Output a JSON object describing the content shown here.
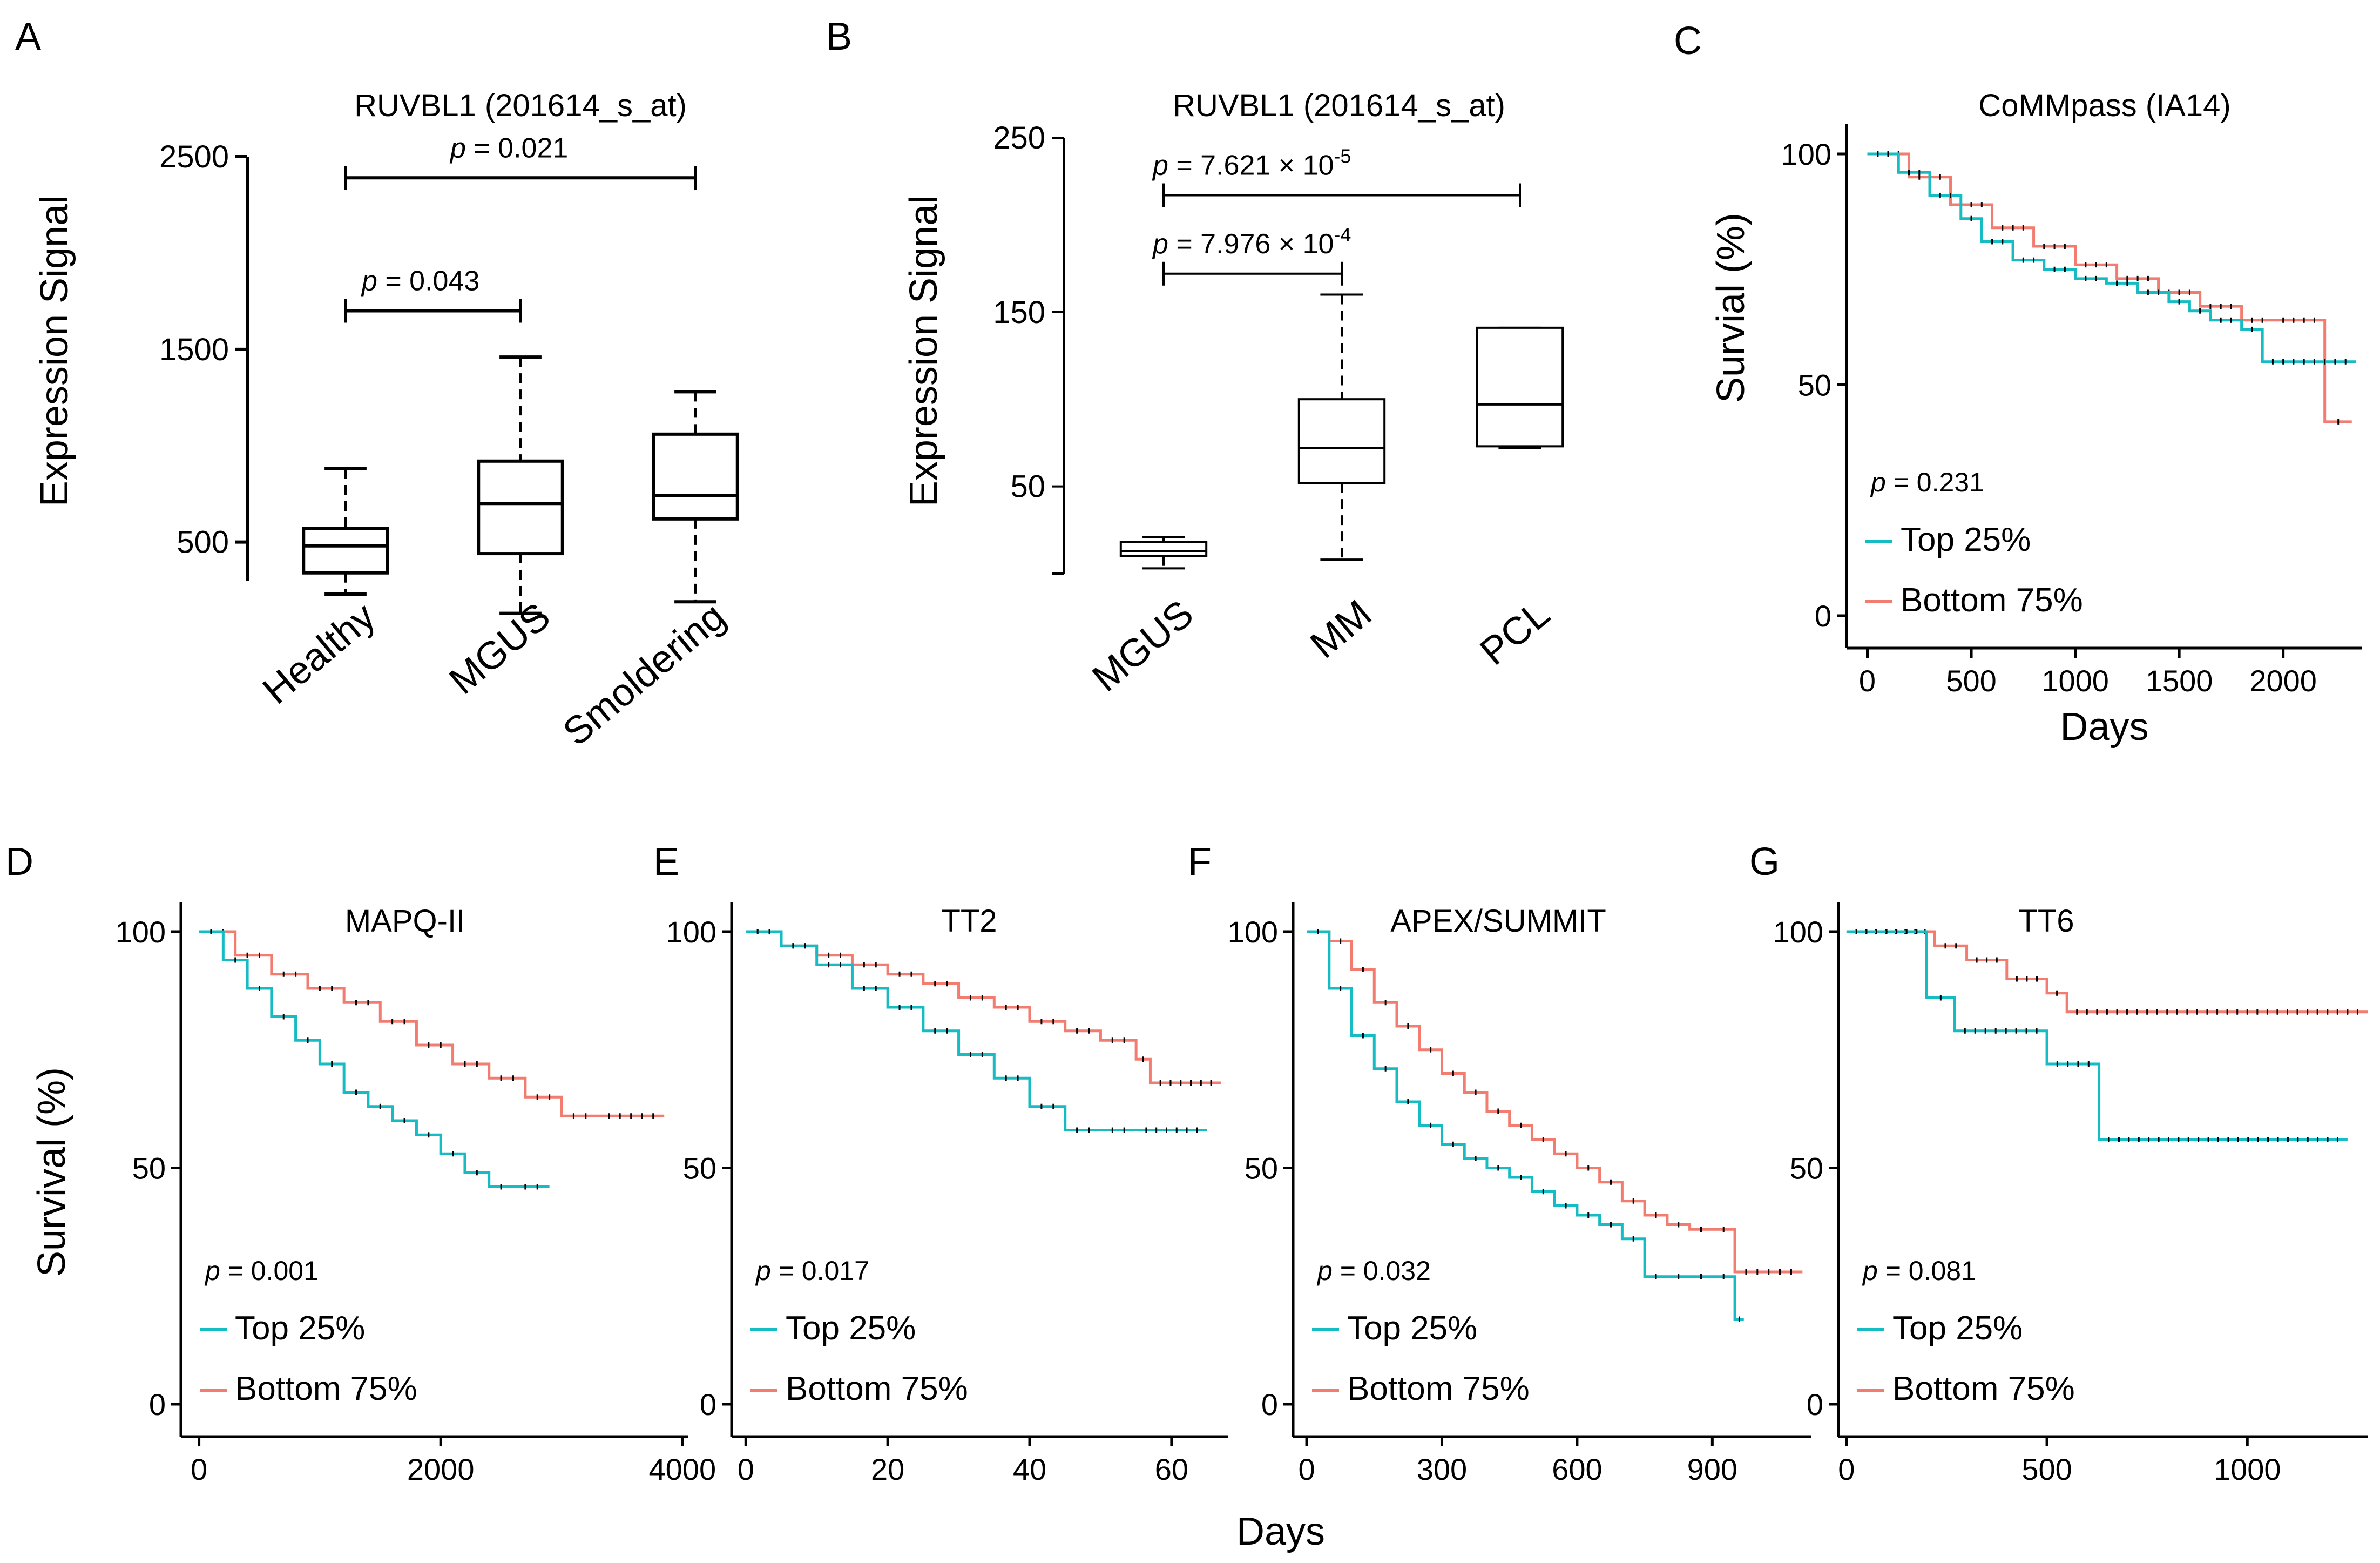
{
  "figure": {
    "shared_xlabel": "Days",
    "colors": {
      "top": "#16bcc4",
      "bottom": "#f27c6f",
      "censor": "#000000",
      "box": "#000000"
    }
  },
  "chart_data": [
    {
      "panel": "A",
      "type": "box",
      "title": "RUVBL1 (201614_s_at)",
      "ylabel": "Expression Signal",
      "ylim": [
        300,
        2500
      ],
      "yticks": [
        500,
        1500,
        2500
      ],
      "categories": [
        "Healthy",
        "MGUS",
        "Smoldering"
      ],
      "boxes": [
        {
          "min": 230,
          "q1": 340,
          "median": 480,
          "q3": 570,
          "max": 880
        },
        {
          "min": 130,
          "q1": 440,
          "median": 700,
          "q3": 920,
          "max": 1460
        },
        {
          "min": 190,
          "q1": 620,
          "median": 740,
          "q3": 1060,
          "max": 1280
        }
      ],
      "comparisons": [
        {
          "from": 0,
          "to": 1,
          "y": 1700,
          "label": "p",
          "value": " = 0.043"
        },
        {
          "from": 0,
          "to": 2,
          "y": 2390,
          "label": "p",
          "value": " = 0.021"
        }
      ]
    },
    {
      "panel": "B",
      "type": "box",
      "title": "RUVBL1 (201614_s_at)",
      "ylabel": "Expression Signal",
      "ylim": [
        0,
        250
      ],
      "yticks": [
        50,
        150,
        250
      ],
      "categories": [
        "MGUS",
        "MM",
        "PCL"
      ],
      "boxes": [
        {
          "min": 3,
          "q1": 10,
          "median": 13,
          "q3": 18,
          "max": 21
        },
        {
          "min": 8,
          "q1": 52,
          "median": 72,
          "q3": 100,
          "max": 160
        },
        {
          "min": 72,
          "q1": 73,
          "median": 97,
          "q3": 141,
          "max": 141
        }
      ],
      "comparisons": [
        {
          "from": 0,
          "to": 1,
          "y": 172,
          "label": "p",
          "value": " = 7.976 × 10",
          "exp": "-4"
        },
        {
          "from": 0,
          "to": 2,
          "y": 217,
          "label": "p",
          "value": " = 7.621 × 10",
          "exp": "-5"
        }
      ]
    },
    {
      "panel": "C",
      "type": "km",
      "title": "CoMMpass (IA14)",
      "ylabel": "Survial (%)",
      "xlabel": "Days",
      "xlim": [
        -100,
        2380
      ],
      "ylim": [
        0,
        100
      ],
      "xticks": [
        0,
        500,
        1000,
        1500,
        2000
      ],
      "yticks": [
        0,
        50,
        100
      ],
      "pvalue": " = 0.231",
      "series": [
        {
          "name": "Top 25%",
          "x": [
            0,
            150,
            300,
            450,
            550,
            700,
            850,
            1000,
            1150,
            1300,
            1450,
            1550,
            1650,
            1800,
            1900,
            2350
          ],
          "y": [
            100,
            96,
            91,
            86,
            81,
            77,
            75,
            73,
            72,
            70,
            68,
            66,
            64,
            62,
            55,
            55
          ]
        },
        {
          "name": "Bottom 75%",
          "x": [
            0,
            200,
            400,
            600,
            800,
            1000,
            1200,
            1400,
            1600,
            1800,
            1950,
            2200,
            2330
          ],
          "y": [
            100,
            95,
            89,
            84,
            80,
            76,
            73,
            70,
            67,
            64,
            64,
            42,
            42
          ]
        }
      ]
    },
    {
      "panel": "D",
      "type": "km",
      "title": "MAPQ-II",
      "ylabel": "Survival (%)",
      "xlim": [
        -150,
        4050
      ],
      "ylim": [
        0,
        100
      ],
      "xticks": [
        0,
        2000,
        4000
      ],
      "yticks": [
        0,
        50,
        100
      ],
      "pvalue": " = 0.001",
      "series": [
        {
          "name": "Top 25%",
          "x": [
            0,
            200,
            400,
            600,
            800,
            1000,
            1200,
            1400,
            1600,
            1800,
            2000,
            2200,
            2400,
            2600,
            2900
          ],
          "y": [
            100,
            94,
            88,
            82,
            77,
            72,
            66,
            63,
            60,
            57,
            53,
            49,
            46,
            46,
            46
          ]
        },
        {
          "name": "Bottom 75%",
          "x": [
            0,
            300,
            600,
            900,
            1200,
            1500,
            1800,
            2100,
            2400,
            2700,
            3000,
            3300,
            3850
          ],
          "y": [
            100,
            95,
            91,
            88,
            85,
            81,
            76,
            72,
            69,
            65,
            61,
            61,
            61
          ]
        }
      ]
    },
    {
      "panel": "E",
      "type": "km",
      "title": "TT2",
      "xlim": [
        -2,
        68
      ],
      "ylim": [
        0,
        100
      ],
      "xticks": [
        0,
        20,
        40,
        60
      ],
      "yticks": [
        0,
        50,
        100
      ],
      "pvalue": " = 0.017",
      "series": [
        {
          "name": "Top 25%",
          "x": [
            0,
            5,
            10,
            15,
            20,
            25,
            30,
            35,
            40,
            45,
            50,
            55,
            65
          ],
          "y": [
            100,
            97,
            93,
            88,
            84,
            79,
            74,
            69,
            63,
            58,
            58,
            58,
            58
          ]
        },
        {
          "name": "Bottom 75%",
          "x": [
            0,
            5,
            10,
            15,
            20,
            25,
            30,
            35,
            40,
            45,
            50,
            55,
            57,
            67
          ],
          "y": [
            100,
            97,
            95,
            93,
            91,
            89,
            86,
            84,
            81,
            79,
            77,
            73,
            68,
            68
          ]
        }
      ]
    },
    {
      "panel": "F",
      "type": "km",
      "title": "APEX/SUMMIT",
      "xlim": [
        -30,
        1120
      ],
      "ylim": [
        0,
        100
      ],
      "xticks": [
        0,
        300,
        600,
        900
      ],
      "yticks": [
        0,
        50,
        100
      ],
      "pvalue": " = 0.032",
      "series": [
        {
          "name": "Top 25%",
          "x": [
            0,
            50,
            100,
            150,
            200,
            250,
            300,
            350,
            400,
            450,
            500,
            550,
            600,
            650,
            700,
            750,
            800,
            850,
            900,
            950,
            970
          ],
          "y": [
            100,
            88,
            78,
            71,
            64,
            59,
            55,
            52,
            50,
            48,
            45,
            42,
            40,
            38,
            35,
            27,
            27,
            27,
            27,
            18,
            18
          ]
        },
        {
          "name": "Bottom 75%",
          "x": [
            0,
            50,
            100,
            150,
            200,
            250,
            300,
            350,
            400,
            450,
            500,
            550,
            600,
            650,
            700,
            750,
            800,
            850,
            900,
            950,
            1100
          ],
          "y": [
            100,
            98,
            92,
            85,
            80,
            75,
            70,
            66,
            62,
            59,
            56,
            53,
            50,
            47,
            43,
            40,
            38,
            37,
            37,
            28,
            28
          ]
        }
      ]
    },
    {
      "panel": "G",
      "type": "km",
      "title": "TT6",
      "xlim": [
        -20,
        1300
      ],
      "ylim": [
        0,
        100
      ],
      "xticks": [
        0,
        500,
        1000
      ],
      "yticks": [
        0,
        50,
        100
      ],
      "pvalue": " = 0.081",
      "series": [
        {
          "name": "Top 25%",
          "x": [
            0,
            200,
            270,
            500,
            630,
            1250
          ],
          "y": [
            100,
            86,
            79,
            72,
            56,
            56
          ]
        },
        {
          "name": "Bottom 75%",
          "x": [
            0,
            220,
            300,
            400,
            500,
            550,
            1300
          ],
          "y": [
            100,
            97,
            94,
            90,
            87,
            83,
            83
          ]
        }
      ]
    }
  ],
  "panels": [
    {
      "letter": "A"
    },
    {
      "letter": "B"
    },
    {
      "letter": "C"
    },
    {
      "letter": "D"
    },
    {
      "letter": "E"
    },
    {
      "letter": "F"
    },
    {
      "letter": "G"
    }
  ]
}
